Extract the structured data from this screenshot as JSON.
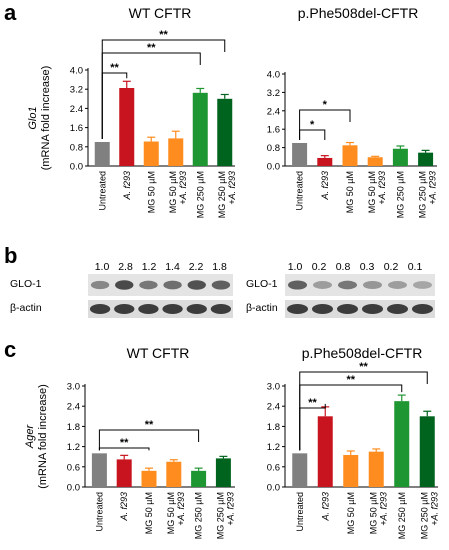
{
  "panel_letters": [
    "a",
    "b",
    "c"
  ],
  "chart_data": [
    {
      "type": "bar",
      "panel": "a",
      "title": "WT CFTR",
      "ylabel_main": "Glo1",
      "ylabel_sub": "(mRNA fold increase)",
      "categories": [
        "Untreated",
        "A. f293",
        "MG 50 µM",
        "MG 50 µM + A. f293",
        "MG 250 µM",
        "MG 250 µM + A. f293"
      ],
      "values": [
        1.0,
        3.25,
        1.02,
        1.15,
        3.05,
        2.8
      ],
      "errors": [
        0.0,
        0.28,
        0.18,
        0.3,
        0.18,
        0.18
      ],
      "colors": [
        "#808080",
        "#c8141e",
        "#ff8c1e",
        "#ff8c1e",
        "#1e9632",
        "#00641e"
      ],
      "ylim": [
        0,
        4
      ],
      "yticks": [
        "0.0",
        "0.8",
        "1.6",
        "2.4",
        "3.2",
        "4.0"
      ],
      "significance": [
        {
          "from": 0,
          "to": 1,
          "label": "**"
        },
        {
          "from": 0,
          "to": 4,
          "label": "**"
        },
        {
          "from": 0,
          "to": 5,
          "label": "**"
        }
      ]
    },
    {
      "type": "bar",
      "panel": "a",
      "title": "p.Phe508del-CFTR",
      "categories": [
        "Untreated",
        "A. f293",
        "MG 50 µM",
        "MG 50 µM + A. f293",
        "MG 250 µM",
        "MG 250 µM + A. f293"
      ],
      "values": [
        1.0,
        0.35,
        0.9,
        0.38,
        0.75,
        0.58
      ],
      "errors": [
        0.0,
        0.1,
        0.12,
        0.04,
        0.12,
        0.1
      ],
      "colors": [
        "#808080",
        "#c8141e",
        "#ff8c1e",
        "#ff8c1e",
        "#1e9632",
        "#00641e"
      ],
      "ylim": [
        0,
        4
      ],
      "yticks": [
        "0.0",
        "0.8",
        "1.6",
        "2.4",
        "3.2",
        "4.0"
      ],
      "significance": [
        {
          "from": 0,
          "to": 1,
          "label": "*"
        },
        {
          "from": 0,
          "to": 2,
          "label": "*"
        }
      ]
    },
    {
      "type": "bar",
      "panel": "c",
      "title": "WT CFTR",
      "ylabel_main": "Ager",
      "ylabel_sub": "(mRNA fold increase)",
      "categories": [
        "Untreated",
        "A. f293",
        "MG 50 µM",
        "MG 50 µM + A. f293",
        "MG 250 µM",
        "MG 250 µM + A. f293"
      ],
      "values": [
        1.0,
        0.82,
        0.48,
        0.75,
        0.48,
        0.85
      ],
      "errors": [
        0.0,
        0.12,
        0.08,
        0.06,
        0.08,
        0.06
      ],
      "colors": [
        "#808080",
        "#c8141e",
        "#ff8c1e",
        "#ff8c1e",
        "#1e9632",
        "#00641e"
      ],
      "ylim": [
        0,
        3
      ],
      "yticks": [
        "0.0",
        "0.6",
        "1.2",
        "1.8",
        "2.4",
        "3.0"
      ],
      "significance": [
        {
          "from": 0,
          "to": 2,
          "label": "**"
        },
        {
          "from": 0,
          "to": 4,
          "label": "**"
        }
      ]
    },
    {
      "type": "bar",
      "panel": "c",
      "title": "p.Phe508del-CFTR",
      "categories": [
        "Untreated",
        "A. f293",
        "MG 50 µM",
        "MG 50 µM + A. f293",
        "MG 250 µM",
        "MG 250 µM + A. f293"
      ],
      "values": [
        1.0,
        2.1,
        0.95,
        1.05,
        2.55,
        2.1
      ],
      "errors": [
        0.0,
        0.28,
        0.12,
        0.08,
        0.18,
        0.15
      ],
      "colors": [
        "#808080",
        "#c8141e",
        "#ff8c1e",
        "#ff8c1e",
        "#1e9632",
        "#00641e"
      ],
      "ylim": [
        0,
        3
      ],
      "yticks": [
        "0.0",
        "0.6",
        "1.2",
        "1.8",
        "2.4",
        "3.0"
      ],
      "significance": [
        {
          "from": 0,
          "to": 1,
          "label": "**"
        },
        {
          "from": 0,
          "to": 4,
          "label": "**"
        },
        {
          "from": 0,
          "to": 5,
          "label": "**"
        }
      ]
    }
  ],
  "western_blot": [
    {
      "values": [
        "1.0",
        "2.8",
        "1.2",
        "1.4",
        "2.2",
        "1.8"
      ],
      "protein": "GLO-1",
      "loading_control": "β-actin",
      "band_intensity": [
        0.45,
        0.85,
        0.55,
        0.6,
        0.8,
        0.7
      ]
    },
    {
      "values": [
        "1.0",
        "0.2",
        "0.8",
        "0.3",
        "0.2",
        "0.1"
      ],
      "protein": "GLO-1",
      "loading_control": "β-actin",
      "band_intensity": [
        0.7,
        0.3,
        0.55,
        0.35,
        0.3,
        0.25
      ]
    }
  ]
}
